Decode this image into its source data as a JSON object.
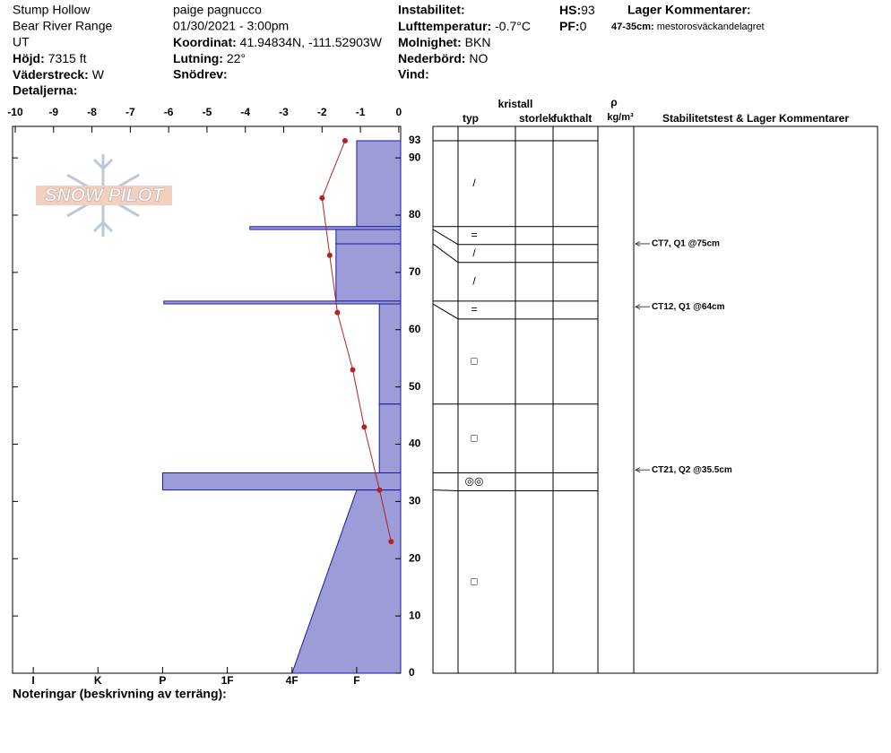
{
  "header": {
    "location": "Stump Hollow",
    "range": "Bear River Range",
    "state": "UT",
    "elevation": {
      "label": "Höjd:",
      "value": "7315 ft"
    },
    "aspect": {
      "label": "Väderstreck:",
      "value": "W"
    },
    "details": {
      "label": "Detaljerna:"
    },
    "observer": "paige pagnucco",
    "datetime": "01/30/2021 - 3:00pm",
    "coordinates": {
      "label": "Koordinat:",
      "value": "41.94834N, -111.52903W"
    },
    "slope": {
      "label": "Lutning:",
      "value": "22°"
    },
    "wind_loading": {
      "label": "Snödrev:"
    },
    "instability": {
      "label": "Instabilitet:"
    },
    "air_temp": {
      "label": "Lufttemperatur:",
      "value": "-0.7°C"
    },
    "sky": {
      "label": "Molnighet:",
      "value": "BKN"
    },
    "precip": {
      "label": "Nederbörd:",
      "value": "NO"
    },
    "wind": {
      "label": "Vind:"
    },
    "hs": {
      "label": "HS:",
      "value": 93
    },
    "pf": {
      "label": "PF:",
      "value": 0
    },
    "layer_comments": {
      "label": "Lager Kommentarer:",
      "items": [
        {
          "range": "47-35cm:",
          "text": "mestorosväckandelagret"
        }
      ]
    }
  },
  "chart_data": {
    "type": "snowpit",
    "logo": "SNOW PILOT",
    "ylim": [
      0,
      95.5
    ],
    "yticks": [
      0,
      10,
      20,
      30,
      40,
      50,
      60,
      70,
      80,
      90
    ],
    "xlim": [
      -10.07,
      0.05
    ],
    "xticks": [
      -10,
      -9,
      -8,
      -7,
      -6,
      -5,
      -4,
      -3,
      -2,
      -1,
      0
    ],
    "hardness_lim": [
      6.32,
      0.32
    ],
    "hardness_ticks": [
      {
        "value": 6,
        "label": "I"
      },
      {
        "value": 5,
        "label": "K"
      },
      {
        "value": 4,
        "label": "P"
      },
      {
        "value": 3,
        "label": "1F"
      },
      {
        "value": 2,
        "label": "4F"
      },
      {
        "value": 1,
        "label": "F"
      }
    ],
    "layer_color": "#9c9cd8",
    "layers": [
      {
        "top": 93,
        "bottom": 78,
        "hardness": 1,
        "grain": "/"
      },
      {
        "top": 78,
        "bottom": 77.5,
        "hardness": 2.65,
        "grain": "="
      },
      {
        "top": 77.5,
        "bottom": 75,
        "hardness": 1.32,
        "grain": "/"
      },
      {
        "top": 75,
        "bottom": 65,
        "hardness": 1.32,
        "grain": "/"
      },
      {
        "top": 65,
        "bottom": 64.5,
        "hardness": 3.98,
        "grain": "="
      },
      {
        "top": 64.5,
        "bottom": 47,
        "hardness": 0.65,
        "grain": "□"
      },
      {
        "top": 47,
        "bottom": 35,
        "hardness": 0.65,
        "grain": "□"
      },
      {
        "top": 35,
        "bottom": 32,
        "hardness": 4,
        "grain": "◎◎"
      },
      {
        "top": 32,
        "bottom": 0,
        "hardness": 1,
        "hardness_bottom": 2,
        "grain": "□"
      }
    ],
    "temperature": {
      "color": "#b22222",
      "heights": [
        93,
        83,
        73,
        63,
        53,
        43,
        32,
        23
      ],
      "values": [
        -1.4,
        -2.0,
        -1.8,
        -1.6,
        -1.2,
        -0.9,
        -0.5,
        -0.2
      ]
    },
    "columns": {
      "crystal": "kristall",
      "type": "typ",
      "size": "storlek",
      "moisture": "fukthalt",
      "rho": "ρ",
      "density_unit": "kg/m³",
      "comments": "Stabilitetstest & Lager Kommentarer"
    },
    "tests": [
      {
        "height": 75,
        "label": "CT7, Q1 @75cm"
      },
      {
        "height": 64,
        "label": "CT12, Q1 @64cm"
      },
      {
        "height": 35.5,
        "label": "CT21, Q2 @35.5cm"
      }
    ],
    "notes_label": "Noteringar (beskrivning av terräng):"
  }
}
